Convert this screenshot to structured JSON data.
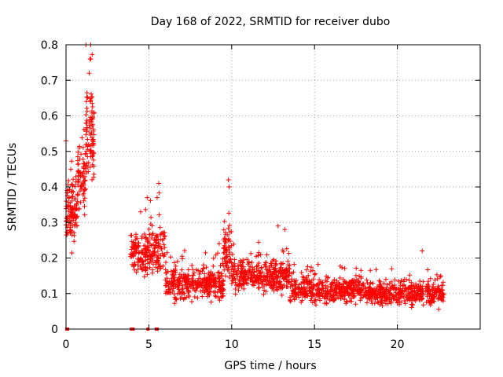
{
  "chart_data": {
    "type": "scatter",
    "title": "Day 168 of 2022, SRMTID for receiver dubo",
    "xlabel": "GPS time / hours",
    "ylabel": "SRMTID / TECUs",
    "xlim": [
      0,
      25
    ],
    "ylim": [
      0,
      0.8
    ],
    "xticks": [
      0,
      5,
      10,
      15,
      20
    ],
    "xtick_labels": [
      "0",
      "5",
      "10",
      "15",
      "20"
    ],
    "yticks": [
      0,
      0.1,
      0.2,
      0.3,
      0.4,
      0.5,
      0.6,
      0.7,
      0.8
    ],
    "ytick_labels": [
      "0",
      "0.1",
      "0.2",
      "0.3",
      "0.4",
      "0.5",
      "0.6",
      "0.7",
      "0.8"
    ],
    "grid": true,
    "marker": "+",
    "color": "#ff0000",
    "series": [
      {
        "name": "SRMTID",
        "segments": [
          {
            "start": 0.0,
            "end": 0.7,
            "mean": 0.33,
            "spread": 0.1,
            "count": 110
          },
          {
            "start": 0.7,
            "end": 1.2,
            "mean": 0.42,
            "spread": 0.1,
            "count": 70
          },
          {
            "start": 1.2,
            "end": 1.7,
            "mean": 0.55,
            "spread": 0.17,
            "count": 90
          },
          {
            "start": 3.9,
            "end": 5.0,
            "mean": 0.21,
            "spread": 0.06,
            "count": 120
          },
          {
            "start": 5.0,
            "end": 6.0,
            "mean": 0.22,
            "spread": 0.08,
            "count": 100
          },
          {
            "start": 6.0,
            "end": 9.5,
            "mean": 0.13,
            "spread": 0.05,
            "count": 360
          },
          {
            "start": 9.5,
            "end": 10.0,
            "mean": 0.22,
            "spread": 0.09,
            "count": 60
          },
          {
            "start": 10.0,
            "end": 13.5,
            "mean": 0.15,
            "spread": 0.05,
            "count": 360
          },
          {
            "start": 13.5,
            "end": 18.0,
            "mean": 0.11,
            "spread": 0.04,
            "count": 420
          },
          {
            "start": 18.0,
            "end": 22.8,
            "mean": 0.1,
            "spread": 0.035,
            "count": 460
          }
        ],
        "peaks": [
          {
            "x": 1.45,
            "y": 0.76
          },
          {
            "x": 1.5,
            "y": 0.76
          },
          {
            "x": 1.4,
            "y": 0.72
          },
          {
            "x": 1.55,
            "y": 0.65
          },
          {
            "x": 1.6,
            "y": 0.59
          },
          {
            "x": 0.0,
            "y": 0.53
          },
          {
            "x": 0.8,
            "y": 0.51
          },
          {
            "x": 5.6,
            "y": 0.41
          },
          {
            "x": 5.5,
            "y": 0.37
          },
          {
            "x": 4.9,
            "y": 0.37
          },
          {
            "x": 9.8,
            "y": 0.42
          },
          {
            "x": 9.85,
            "y": 0.4
          },
          {
            "x": 4.5,
            "y": 0.33
          },
          {
            "x": 12.8,
            "y": 0.29
          },
          {
            "x": 13.2,
            "y": 0.28
          },
          {
            "x": 21.5,
            "y": 0.22
          }
        ],
        "zeros": [
          {
            "x": 0.05,
            "y": 0.0
          },
          {
            "x": 0.1,
            "y": 0.0
          },
          {
            "x": 3.95,
            "y": 0.0
          },
          {
            "x": 4.05,
            "y": 0.0
          },
          {
            "x": 4.95,
            "y": 0.0
          },
          {
            "x": 5.45,
            "y": 0.0
          },
          {
            "x": 5.5,
            "y": 0.0
          }
        ]
      }
    ]
  }
}
